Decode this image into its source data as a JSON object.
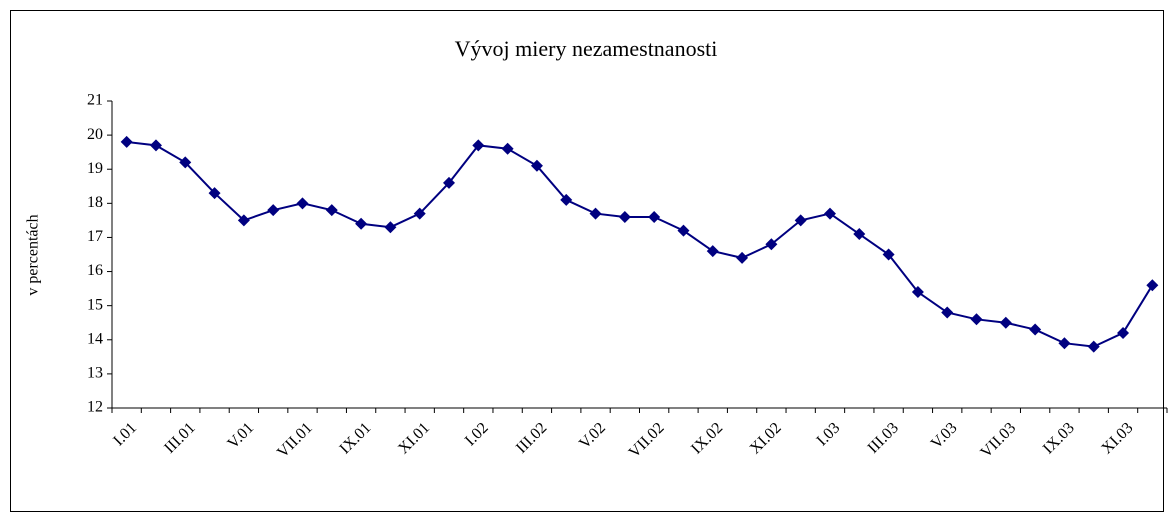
{
  "chart_data": {
    "type": "line",
    "title": "Vývoj miery nezamestnanosti",
    "y_label": "v percentách",
    "categories": [
      "I.01",
      null,
      "III.01",
      null,
      "V.01",
      null,
      "VII.01",
      null,
      "IX.01",
      null,
      "XI.01",
      null,
      "I.02",
      null,
      "III.02",
      null,
      "V.02",
      null,
      "VII.02",
      null,
      "IX.02",
      null,
      "XI.02",
      null,
      "I.03",
      null,
      "III.03",
      null,
      "V.03",
      null,
      "VII.03",
      null,
      "IX.03",
      null,
      "XI.03",
      null
    ],
    "values": [
      19.8,
      19.7,
      19.2,
      18.3,
      17.5,
      17.8,
      18.0,
      17.8,
      17.4,
      17.3,
      17.7,
      18.6,
      19.7,
      19.6,
      19.1,
      18.1,
      17.7,
      17.6,
      17.6,
      17.2,
      16.6,
      16.4,
      16.8,
      17.5,
      17.7,
      17.1,
      16.5,
      15.4,
      14.8,
      14.6,
      14.5,
      14.3,
      13.9,
      13.8,
      14.2,
      15.6
    ],
    "color": "#000080",
    "ylim": [
      12,
      21
    ],
    "yticks": [
      12,
      13,
      14,
      15,
      16,
      17,
      18,
      19,
      20,
      21
    ]
  }
}
